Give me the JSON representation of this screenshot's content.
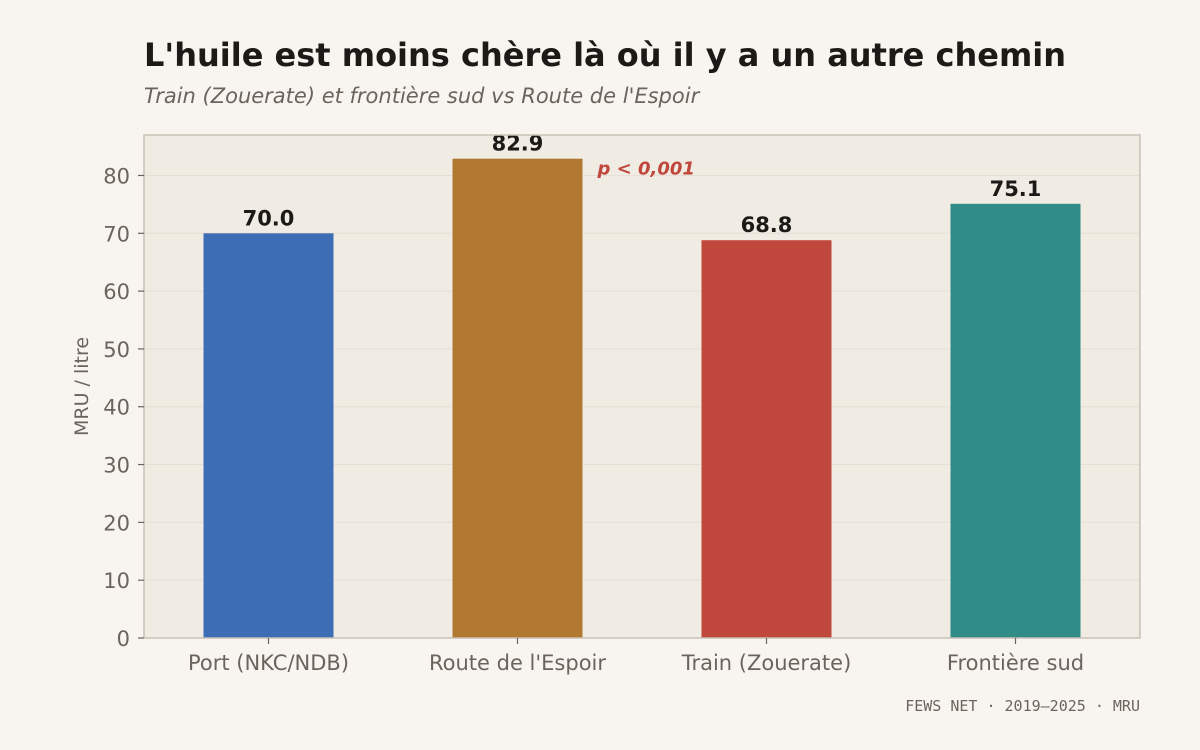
{
  "chart_data": {
    "type": "bar",
    "title": "L'huile est moins chère là où il y a un autre chemin",
    "subtitle": "Train (Zouerate) et frontière sud vs Route de l'Espoir",
    "xlabel": "",
    "ylabel": "MRU / litre",
    "ylim": [
      0,
      87
    ],
    "yticks": [
      0,
      10,
      20,
      30,
      40,
      50,
      60,
      70,
      80
    ],
    "grid": true,
    "categories": [
      "Port (NKC/NDB)",
      "Route de l'Espoir",
      "Train (Zouerate)",
      "Frontière sud"
    ],
    "values": [
      70.0,
      82.9,
      68.8,
      75.1
    ],
    "value_labels": [
      "70.0",
      "82.9",
      "68.8",
      "75.1"
    ],
    "colors": [
      "#3d6db5",
      "#b07831",
      "#c0473c",
      "#2f8c87"
    ],
    "annotation": {
      "text": "p < 0,001",
      "category_index": 1,
      "color": "#c0473c"
    },
    "source": "FEWS NET · 2019–2025 · MRU"
  },
  "style": {
    "plot_background": "#f0ebe3",
    "frame_color": "#c9c1b5",
    "grid_color": "#e6dfd4",
    "axis_text_color": "#6b645c"
  }
}
